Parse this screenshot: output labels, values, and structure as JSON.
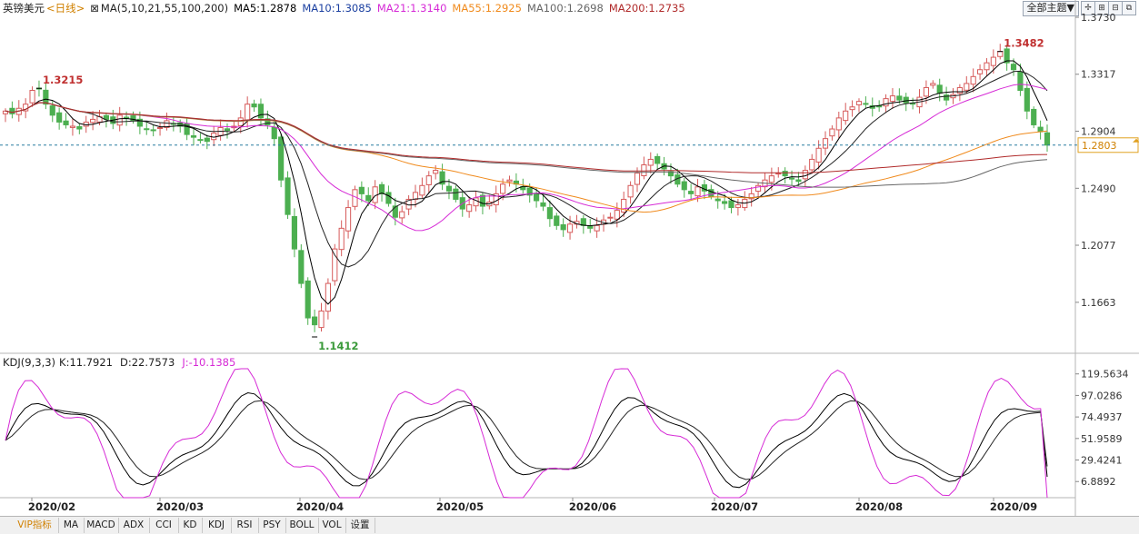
{
  "header": {
    "instrument": "英镑美元",
    "period": "<日线>",
    "ma_setting": "MA(5,10,21,55,100,200)",
    "ma_values": [
      {
        "label": "MA5:1.2878",
        "color": "#000000"
      },
      {
        "label": "MA10:1.3085",
        "color": "#222222"
      },
      {
        "label": "MA21:1.3140",
        "color": "#d62ad6"
      },
      {
        "label": "MA55:1.2925",
        "color": "#f08a1c"
      },
      {
        "label": "MA100:1.2698",
        "color": "#666666"
      },
      {
        "label": "MA200:1.2735",
        "color": "#b02a2a"
      }
    ],
    "theme_button": "全部主题▼",
    "icon_names": [
      "crosshair-icon",
      "zoom-in-icon",
      "zoom-out-icon",
      "restore-icon"
    ],
    "icon_glyphs": [
      "✢",
      "⊞",
      "⊟",
      "⧉"
    ]
  },
  "kdj_header": {
    "setting": "KDJ(9,3,3)",
    "k": "K:11.7921",
    "d": "D:22.7573",
    "j": "J:-10.1385"
  },
  "tabs": [
    "VIP指标",
    "MA",
    "MACD",
    "ADX",
    "CCI",
    "KD",
    "KDJ",
    "RSI",
    "PSY",
    "BOLL",
    "VOL",
    "设置"
  ],
  "chart_data": [
    {
      "type": "candlestick",
      "title": "英镑美元 <日线>",
      "x_labels": [
        "2020/02",
        "2020/03",
        "2020/04",
        "2020/05",
        "2020/06",
        "2020/07",
        "2020/08",
        "2020/09"
      ],
      "y_ticks": [
        "1.3730",
        "1.3317",
        "1.2904",
        "1.2490",
        "1.2077",
        "1.1663"
      ],
      "ylim": [
        1.13,
        1.375
      ],
      "current_price": "1.2803",
      "annotations": [
        {
          "label": "1.3215",
          "value": 1.3215,
          "color": "#c03030"
        },
        {
          "label": "1.1412",
          "value": 1.1412,
          "color": "#3a9a3a"
        },
        {
          "label": "1.3482",
          "value": 1.3482,
          "color": "#c03030"
        }
      ],
      "close_series": [
        1.305,
        1.303,
        1.307,
        1.31,
        1.32,
        1.3215,
        1.31,
        1.302,
        1.297,
        1.295,
        1.294,
        1.292,
        1.297,
        1.299,
        1.301,
        1.299,
        1.296,
        1.302,
        1.3,
        1.298,
        1.294,
        1.292,
        1.291,
        1.293,
        1.298,
        1.296,
        1.294,
        1.288,
        1.286,
        1.284,
        1.283,
        1.289,
        1.293,
        1.291,
        1.294,
        1.3,
        1.31,
        1.308,
        1.3,
        1.295,
        1.285,
        1.255,
        1.23,
        1.205,
        1.18,
        1.155,
        1.15,
        1.16,
        1.18,
        1.205,
        1.22,
        1.235,
        1.248,
        1.245,
        1.24,
        1.25,
        1.245,
        1.238,
        1.228,
        1.232,
        1.241,
        1.246,
        1.251,
        1.258,
        1.262,
        1.252,
        1.247,
        1.241,
        1.234,
        1.237,
        1.242,
        1.236,
        1.239,
        1.245,
        1.252,
        1.255,
        1.252,
        1.248,
        1.244,
        1.24,
        1.236,
        1.227,
        1.222,
        1.219,
        1.223,
        1.225,
        1.222,
        1.22,
        1.222,
        1.226,
        1.228,
        1.233,
        1.241,
        1.251,
        1.26,
        1.266,
        1.27,
        1.267,
        1.263,
        1.258,
        1.252,
        1.248,
        1.245,
        1.25,
        1.247,
        1.243,
        1.24,
        1.238,
        1.235,
        1.237,
        1.241,
        1.245,
        1.251,
        1.255,
        1.258,
        1.26,
        1.258,
        1.256,
        1.254,
        1.262,
        1.27,
        1.278,
        1.285,
        1.292,
        1.3,
        1.305,
        1.308,
        1.312,
        1.31,
        1.307,
        1.308,
        1.314,
        1.316,
        1.313,
        1.311,
        1.31,
        1.315,
        1.322,
        1.325,
        1.318,
        1.313,
        1.317,
        1.322,
        1.325,
        1.33,
        1.335,
        1.34,
        1.344,
        1.3482,
        1.34,
        1.335,
        1.32,
        1.305,
        1.295,
        1.29,
        1.2803
      ],
      "series": [
        {
          "name": "MA5",
          "color": "#000000",
          "last": 1.2878
        },
        {
          "name": "MA10",
          "color": "#222222",
          "last": 1.3085
        },
        {
          "name": "MA21",
          "color": "#d62ad6",
          "last": 1.314
        },
        {
          "name": "MA55",
          "color": "#f08a1c",
          "last": 1.2925
        },
        {
          "name": "MA100",
          "color": "#666666",
          "last": 1.2698
        },
        {
          "name": "MA200",
          "color": "#b02a2a",
          "last": 1.2735
        }
      ],
      "colors": {
        "up": "#d65a5a",
        "down": "#4caf50"
      }
    },
    {
      "type": "line",
      "title": "KDJ(9,3,3)",
      "y_ticks": [
        "119.5634",
        "97.0286",
        "74.4937",
        "51.9589",
        "29.4241",
        "6.8892"
      ],
      "ylim": [
        -10,
        125
      ],
      "series": [
        {
          "name": "K",
          "color": "#000000",
          "last": 11.7921
        },
        {
          "name": "D",
          "color": "#222222",
          "last": 22.7573
        },
        {
          "name": "J",
          "color": "#d62ad6",
          "last": -10.1385
        }
      ]
    }
  ]
}
